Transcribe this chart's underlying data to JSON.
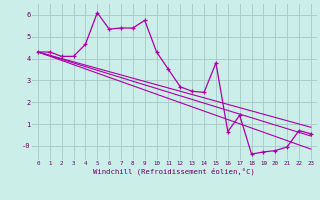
{
  "xlabel": "Windchill (Refroidissement éolien,°C)",
  "bg_color": "#cceee8",
  "grid_color": "#aacccc",
  "line_color": "#aa00aa",
  "label_color": "#660066",
  "xlim": [
    -0.5,
    23.5
  ],
  "ylim": [
    -0.65,
    6.5
  ],
  "xticks": [
    0,
    1,
    2,
    3,
    4,
    5,
    6,
    7,
    8,
    9,
    10,
    11,
    12,
    13,
    14,
    15,
    16,
    17,
    18,
    19,
    20,
    21,
    22,
    23
  ],
  "yticks": [
    0,
    1,
    2,
    3,
    4,
    5,
    6
  ],
  "ytick_labels": [
    "-0",
    "1",
    "2",
    "3",
    "4",
    "5",
    "6"
  ],
  "main_line_x": [
    0,
    1,
    2,
    3,
    4,
    5,
    6,
    7,
    8,
    9,
    10,
    11,
    12,
    13,
    14,
    15,
    16,
    17,
    18,
    19,
    20,
    21,
    22,
    23
  ],
  "main_line_y": [
    4.3,
    4.3,
    4.1,
    4.1,
    4.65,
    6.1,
    5.35,
    5.4,
    5.4,
    5.75,
    4.3,
    3.5,
    2.7,
    2.5,
    2.45,
    3.8,
    0.65,
    1.4,
    -0.38,
    -0.28,
    -0.22,
    -0.05,
    0.7,
    0.55
  ],
  "trend1_x": [
    0,
    23
  ],
  "trend1_y": [
    4.3,
    -0.15
  ],
  "trend2_x": [
    0,
    23
  ],
  "trend2_y": [
    4.3,
    0.45
  ],
  "trend3_x": [
    0,
    23
  ],
  "trend3_y": [
    4.3,
    0.85
  ]
}
